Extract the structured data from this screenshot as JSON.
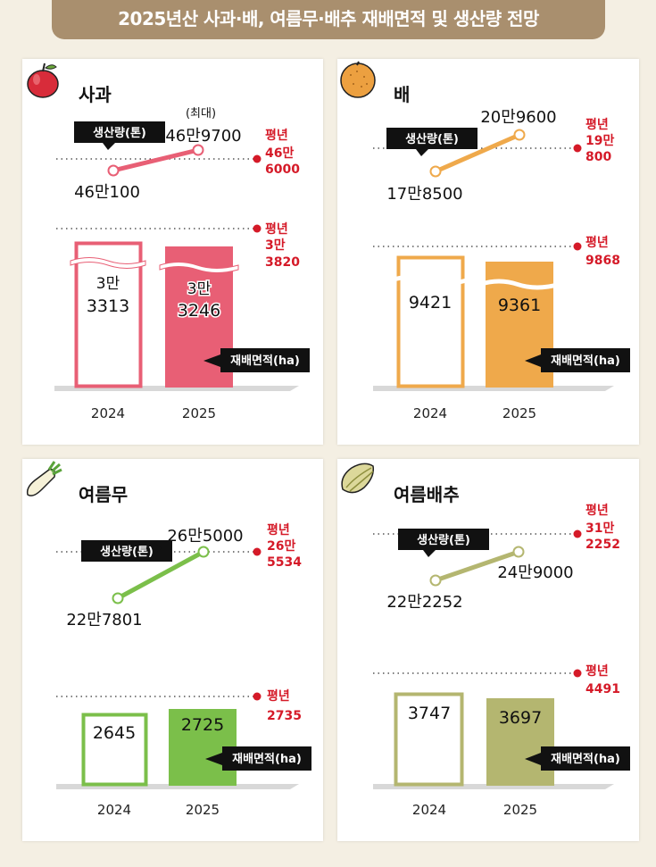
{
  "title": "2025년산 사과·배, 여름무·배추 재배면적 및 생산량 전망",
  "common": {
    "production_label": "생산량(톤)",
    "area_label": "재배면적(ha)",
    "avg_label": "평년",
    "max_label": "(최대)"
  },
  "colors": {
    "apple": "#e85f75",
    "pear": "#efa94b",
    "radish": "#7bbf4a",
    "cabbage": "#b4b670",
    "avg": "#d51a28"
  },
  "chart_data": [
    {
      "type": "bar+line",
      "name": "사과",
      "x": [
        "2024",
        "2025"
      ],
      "production": {
        "values": [
          460100,
          469700
        ],
        "labels": [
          "46만100",
          "46만9700"
        ],
        "note_2025": "(최대)",
        "avg": 466000,
        "avg_label_lines": [
          "46만",
          "6000"
        ]
      },
      "area": {
        "values": [
          33313,
          33246
        ],
        "label_lines": [
          [
            "3만",
            "3313"
          ],
          [
            "3만",
            "3246"
          ]
        ],
        "avg": 33820,
        "avg_label_lines": [
          "3만",
          "3820"
        ],
        "axis_break": true
      }
    },
    {
      "type": "bar+line",
      "name": "배",
      "x": [
        "2024",
        "2025"
      ],
      "production": {
        "values": [
          178500,
          209600
        ],
        "labels": [
          "17만8500",
          "20만9600"
        ],
        "avg": 190800,
        "avg_label_lines": [
          "19만",
          "800"
        ]
      },
      "area": {
        "values": [
          9421,
          9361
        ],
        "label_lines": [
          [
            "9421"
          ],
          [
            "9361"
          ]
        ],
        "avg": 9868,
        "avg_label_lines": [
          "9868"
        ],
        "axis_break": true
      }
    },
    {
      "type": "bar+line",
      "name": "여름무",
      "x": [
        "2024",
        "2025"
      ],
      "production": {
        "values": [
          227801,
          265000
        ],
        "labels": [
          "22만7801",
          "26만5000"
        ],
        "avg": 265534,
        "avg_label_lines": [
          "26만",
          "5534"
        ]
      },
      "area": {
        "values": [
          2645,
          2725
        ],
        "label_lines": [
          [
            "2645"
          ],
          [
            "2725"
          ]
        ],
        "avg": 2735,
        "avg_label_lines": [
          "2735"
        ],
        "axis_break": false
      }
    },
    {
      "type": "bar+line",
      "name": "여름배추",
      "x": [
        "2024",
        "2025"
      ],
      "production": {
        "values": [
          222252,
          249000
        ],
        "labels": [
          "22만2252",
          "24만9000"
        ],
        "avg": 312252,
        "avg_label_lines": [
          "31만",
          "2252"
        ]
      },
      "area": {
        "values": [
          3747,
          3697
        ],
        "label_lines": [
          [
            "3747"
          ],
          [
            "3697"
          ]
        ],
        "avg": 4491,
        "avg_label_lines": [
          "4491"
        ],
        "axis_break": false
      }
    }
  ]
}
